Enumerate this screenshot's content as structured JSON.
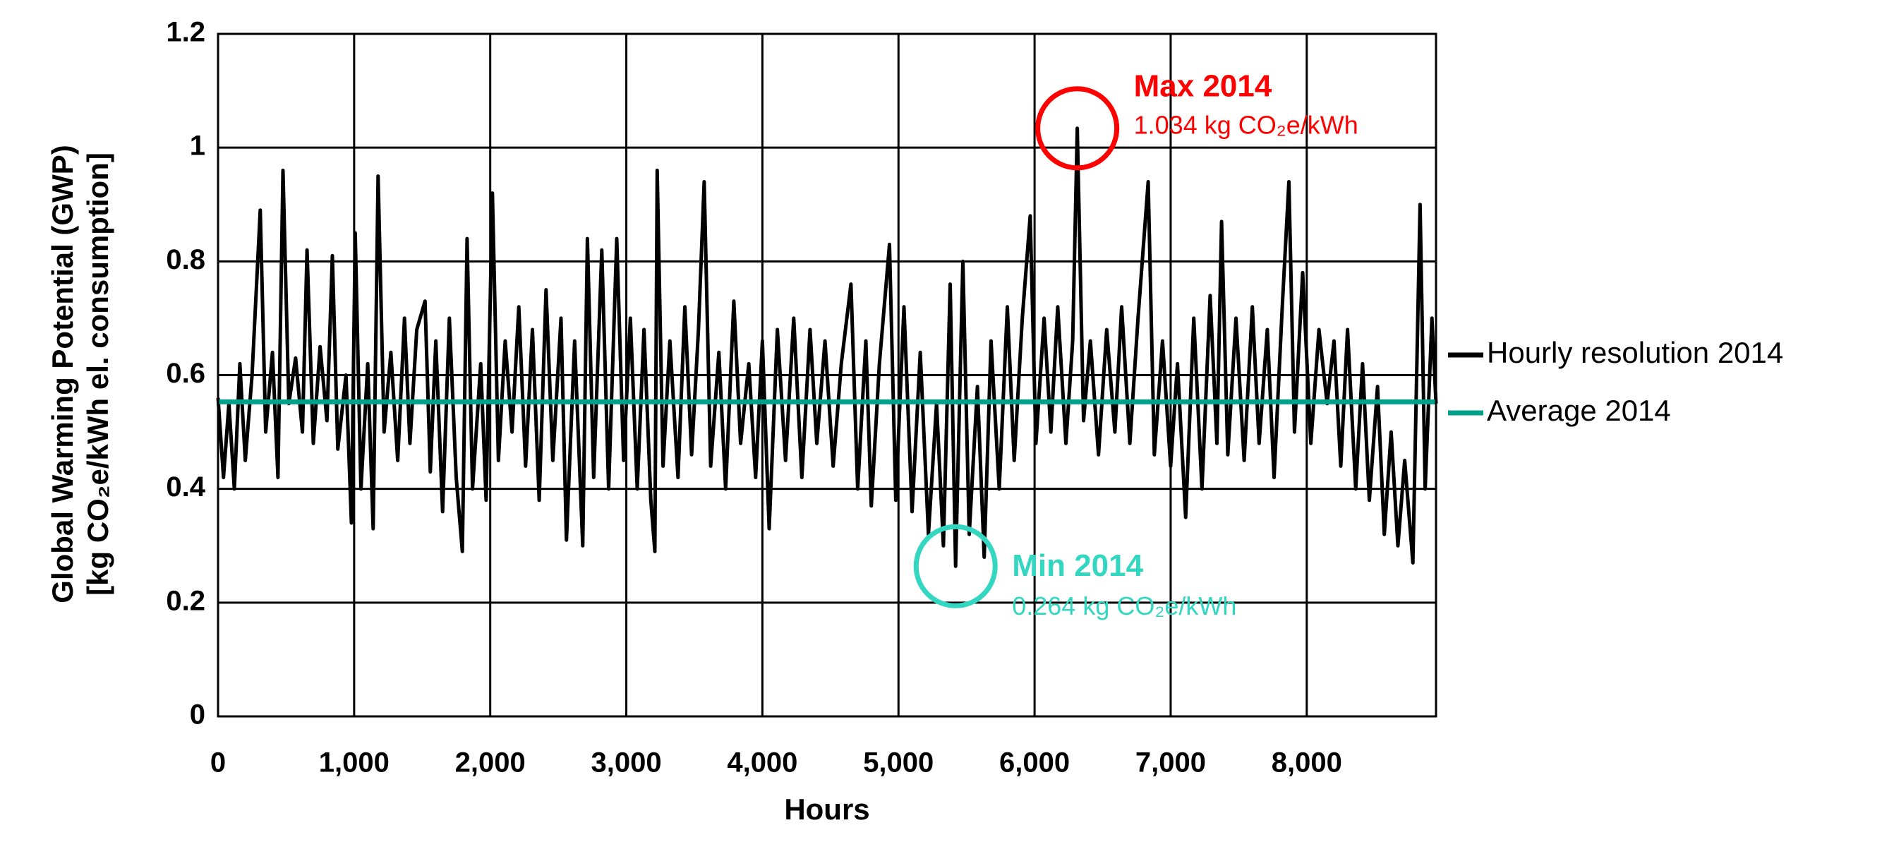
{
  "chart_data": {
    "type": "line",
    "x_label": "Hours",
    "y_label": [
      "Global Warming Potential (GWP)",
      "[kg CO₂e/kWh el. consumption]"
    ],
    "x": [
      0,
      40,
      80,
      120,
      160,
      200,
      250,
      310,
      350,
      400,
      440,
      477,
      520,
      570,
      620,
      654,
      700,
      750,
      800,
      840,
      880,
      940,
      980,
      1008,
      1050,
      1100,
      1140,
      1176,
      1220,
      1270,
      1320,
      1370,
      1410,
      1460,
      1521,
      1560,
      1600,
      1650,
      1700,
      1750,
      1795,
      1830,
      1870,
      1930,
      1970,
      2016,
      2060,
      2110,
      2160,
      2210,
      2260,
      2310,
      2360,
      2410,
      2460,
      2520,
      2560,
      2620,
      2680,
      2714,
      2760,
      2820,
      2870,
      2930,
      2980,
      3030,
      3080,
      3130,
      3180,
      3210,
      3227,
      3270,
      3320,
      3380,
      3430,
      3480,
      3530,
      3572,
      3620,
      3680,
      3730,
      3790,
      3840,
      3900,
      3950,
      4000,
      4050,
      4110,
      4170,
      4230,
      4290,
      4350,
      4400,
      4460,
      4520,
      4580,
      4651,
      4700,
      4760,
      4800,
      4860,
      4934,
      4980,
      5040,
      5100,
      5160,
      5220,
      5280,
      5330,
      5380,
      5420,
      5473,
      5520,
      5580,
      5630,
      5680,
      5740,
      5800,
      5850,
      5910,
      5968,
      6010,
      6070,
      6120,
      6170,
      6230,
      6280,
      6314,
      6360,
      6410,
      6470,
      6530,
      6590,
      6640,
      6700,
      6760,
      6835,
      6880,
      6940,
      7000,
      7050,
      7110,
      7170,
      7230,
      7290,
      7340,
      7374,
      7420,
      7480,
      7540,
      7600,
      7650,
      7710,
      7760,
      7820,
      7869,
      7910,
      7970,
      8030,
      8090,
      8150,
      8200,
      8250,
      8300,
      8360,
      8410,
      8460,
      8520,
      8570,
      8620,
      8670,
      8720,
      8780,
      8833,
      8870,
      8920,
      8950
    ],
    "series": [
      {
        "name": "Hourly resolution 2014",
        "color": "#000000",
        "values": [
          0.56,
          0.42,
          0.55,
          0.4,
          0.62,
          0.45,
          0.6,
          0.89,
          0.5,
          0.64,
          0.42,
          0.96,
          0.55,
          0.63,
          0.5,
          0.82,
          0.48,
          0.65,
          0.52,
          0.81,
          0.47,
          0.6,
          0.34,
          0.85,
          0.4,
          0.62,
          0.33,
          0.95,
          0.5,
          0.64,
          0.45,
          0.7,
          0.48,
          0.68,
          0.73,
          0.43,
          0.66,
          0.36,
          0.7,
          0.42,
          0.29,
          0.84,
          0.4,
          0.62,
          0.38,
          0.92,
          0.45,
          0.66,
          0.5,
          0.72,
          0.44,
          0.68,
          0.38,
          0.75,
          0.45,
          0.7,
          0.31,
          0.66,
          0.3,
          0.84,
          0.42,
          0.82,
          0.4,
          0.84,
          0.45,
          0.7,
          0.4,
          0.68,
          0.38,
          0.29,
          0.96,
          0.44,
          0.66,
          0.42,
          0.72,
          0.46,
          0.68,
          0.94,
          0.44,
          0.64,
          0.4,
          0.73,
          0.48,
          0.62,
          0.42,
          0.66,
          0.33,
          0.68,
          0.45,
          0.7,
          0.42,
          0.68,
          0.48,
          0.66,
          0.44,
          0.62,
          0.76,
          0.4,
          0.66,
          0.37,
          0.62,
          0.83,
          0.38,
          0.72,
          0.36,
          0.64,
          0.32,
          0.55,
          0.3,
          0.76,
          0.264,
          0.8,
          0.32,
          0.58,
          0.28,
          0.66,
          0.4,
          0.72,
          0.45,
          0.7,
          0.88,
          0.48,
          0.7,
          0.5,
          0.72,
          0.48,
          0.66,
          1.034,
          0.52,
          0.66,
          0.46,
          0.68,
          0.5,
          0.72,
          0.48,
          0.7,
          0.94,
          0.46,
          0.66,
          0.44,
          0.62,
          0.35,
          0.7,
          0.4,
          0.74,
          0.48,
          0.87,
          0.46,
          0.7,
          0.45,
          0.72,
          0.48,
          0.68,
          0.42,
          0.72,
          0.94,
          0.5,
          0.78,
          0.48,
          0.68,
          0.55,
          0.66,
          0.44,
          0.68,
          0.4,
          0.62,
          0.38,
          0.58,
          0.32,
          0.5,
          0.3,
          0.45,
          0.27,
          0.9,
          0.4,
          0.7,
          0.55
        ]
      }
    ],
    "reference_lines": [
      {
        "name": "Average 2014",
        "color": "#00a08a",
        "value": 0.553
      }
    ],
    "annotations": [
      {
        "title": "Max 2014",
        "text": "1.034 kg CO₂e/kWh",
        "color": "#ff0000"
      },
      {
        "title": "Min 2014",
        "text": "0.264 kg CO₂e/kWh",
        "color": "#33d6c0"
      }
    ],
    "xlim": [
      0,
      8950
    ],
    "xticks": [
      0,
      {
        "value": 1000,
        "label": "1,000"
      },
      {
        "value": 2000,
        "label": "2,000"
      },
      {
        "value": 3000,
        "label": "3,000"
      },
      {
        "value": 4000,
        "label": "4,000"
      },
      {
        "value": 5000,
        "label": "5,000"
      },
      {
        "value": 6000,
        "label": "6,000"
      },
      {
        "value": 7000,
        "label": "7,000"
      },
      {
        "value": 8000,
        "label": "8,000"
      }
    ],
    "ylim": [
      0,
      1.2
    ],
    "yticks": [
      0,
      0.2,
      0.4,
      0.6,
      0.8,
      1,
      1.2
    ],
    "grid": true,
    "legend": "right"
  }
}
